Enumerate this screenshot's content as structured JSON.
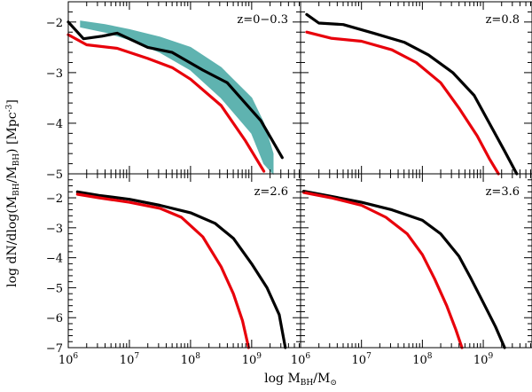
{
  "figure": {
    "xlabel": {
      "main": "log M",
      "sub": "BH",
      "tail": "/M",
      "sun": "⊙"
    },
    "ylabel": {
      "lead": "log dN/dlog(M",
      "sub1": "BH",
      "mid": "/M",
      "sub2": "BH",
      "tail": ") [Mpc",
      "sup": "-3",
      "end": "]"
    }
  },
  "colors": {
    "black": "#000000",
    "red": "#e8000b",
    "band": "#5fb3b0"
  },
  "chart_data": [
    {
      "type": "line",
      "title": "z=0−0.3",
      "xlim": [
        6,
        9.8
      ],
      "ylim": [
        -5,
        -1.6
      ],
      "xticks": [
        {
          "v": 6,
          "label": "10",
          "exp": "6"
        },
        {
          "v": 7,
          "label": "10",
          "exp": "7"
        },
        {
          "v": 8,
          "label": "10",
          "exp": "8"
        },
        {
          "v": 9,
          "label": "10",
          "exp": "9"
        }
      ],
      "yticks": [
        {
          "v": -5,
          "label": "−5"
        },
        {
          "v": -4,
          "label": "−4"
        },
        {
          "v": -3,
          "label": "−3"
        },
        {
          "v": -2,
          "label": "−2"
        }
      ],
      "band": {
        "name": "observed range",
        "x": [
          6.2,
          6.6,
          7.0,
          7.5,
          8.0,
          8.5,
          9.0,
          9.2,
          9.35
        ],
        "upper": [
          -1.98,
          -2.05,
          -2.15,
          -2.3,
          -2.5,
          -2.9,
          -3.5,
          -4.0,
          -4.6
        ],
        "lower": [
          -2.1,
          -2.2,
          -2.35,
          -2.6,
          -2.95,
          -3.5,
          -4.2,
          -4.8,
          -5.0
        ]
      },
      "series": [
        {
          "name": "model (black)",
          "color": "black",
          "x": [
            6.0,
            6.25,
            6.55,
            6.8,
            7.3,
            7.7,
            8.2,
            8.6,
            9.15,
            9.5
          ],
          "y": [
            -2.0,
            -2.33,
            -2.28,
            -2.22,
            -2.5,
            -2.6,
            -2.95,
            -3.2,
            -3.95,
            -4.68
          ]
        },
        {
          "name": "model (red)",
          "color": "red",
          "x": [
            6.0,
            6.3,
            6.8,
            7.3,
            7.7,
            8.0,
            8.5,
            8.9,
            9.2
          ],
          "y": [
            -2.25,
            -2.45,
            -2.52,
            -2.72,
            -2.9,
            -3.13,
            -3.65,
            -4.35,
            -4.95
          ]
        }
      ]
    },
    {
      "type": "line",
      "title": "z=0.8",
      "xlim": [
        6,
        9.8
      ],
      "ylim": [
        -5,
        -1.6
      ],
      "xticks": [
        {
          "v": 6,
          "label": "10",
          "exp": "6"
        },
        {
          "v": 7,
          "label": "10",
          "exp": "7"
        },
        {
          "v": 8,
          "label": "10",
          "exp": "8"
        },
        {
          "v": 9,
          "label": "10",
          "exp": "9"
        }
      ],
      "yticks": [
        {
          "v": -5,
          "label": ""
        },
        {
          "v": -4,
          "label": ""
        },
        {
          "v": -3,
          "label": ""
        },
        {
          "v": -2,
          "label": ""
        }
      ],
      "series": [
        {
          "name": "model (black)",
          "color": "black",
          "x": [
            6.1,
            6.3,
            6.7,
            7.2,
            7.7,
            8.1,
            8.5,
            8.85,
            9.1,
            9.35,
            9.55
          ],
          "y": [
            -1.85,
            -2.02,
            -2.05,
            -2.22,
            -2.4,
            -2.65,
            -3.0,
            -3.45,
            -4.0,
            -4.55,
            -5.0
          ]
        },
        {
          "name": "model (red)",
          "color": "red",
          "x": [
            6.1,
            6.5,
            7.0,
            7.5,
            7.9,
            8.3,
            8.6,
            8.9,
            9.1,
            9.25
          ],
          "y": [
            -2.2,
            -2.32,
            -2.38,
            -2.55,
            -2.8,
            -3.2,
            -3.7,
            -4.25,
            -4.7,
            -5.0
          ]
        }
      ]
    },
    {
      "type": "line",
      "title": "z=2.6",
      "xlim": [
        6,
        9.8
      ],
      "ylim": [
        -7,
        -1.2
      ],
      "xticks": [
        {
          "v": 6,
          "label": "10",
          "exp": "6"
        },
        {
          "v": 7,
          "label": "10",
          "exp": "7"
        },
        {
          "v": 8,
          "label": "10",
          "exp": "8"
        },
        {
          "v": 9,
          "label": "10",
          "exp": "9"
        }
      ],
      "yticks": [
        {
          "v": -7,
          "label": "−7"
        },
        {
          "v": -6,
          "label": "−6"
        },
        {
          "v": -5,
          "label": "−5"
        },
        {
          "v": -4,
          "label": "−4"
        },
        {
          "v": -3,
          "label": "−3"
        },
        {
          "v": -2,
          "label": "−2"
        }
      ],
      "series": [
        {
          "name": "model (black)",
          "color": "black",
          "x": [
            6.15,
            6.5,
            7.0,
            7.5,
            8.0,
            8.4,
            8.7,
            9.0,
            9.25,
            9.45,
            9.55
          ],
          "y": [
            -1.8,
            -1.92,
            -2.05,
            -2.25,
            -2.5,
            -2.85,
            -3.35,
            -4.2,
            -5.0,
            -5.9,
            -7.0
          ]
        },
        {
          "name": "model (red)",
          "color": "red",
          "x": [
            6.15,
            6.5,
            7.0,
            7.5,
            7.85,
            8.2,
            8.5,
            8.7,
            8.85,
            8.95
          ],
          "y": [
            -1.88,
            -2.0,
            -2.15,
            -2.35,
            -2.65,
            -3.3,
            -4.3,
            -5.2,
            -6.1,
            -7.0
          ]
        }
      ]
    },
    {
      "type": "line",
      "title": "z=3.6",
      "xlim": [
        6,
        9.8
      ],
      "ylim": [
        -7,
        -1.2
      ],
      "xticks": [
        {
          "v": 6,
          "label": "10",
          "exp": "6"
        },
        {
          "v": 7,
          "label": "10",
          "exp": "7"
        },
        {
          "v": 8,
          "label": "10",
          "exp": "8"
        },
        {
          "v": 9,
          "label": "10",
          "exp": "9"
        }
      ],
      "yticks": [
        {
          "v": -7,
          "label": ""
        },
        {
          "v": -6,
          "label": ""
        },
        {
          "v": -5,
          "label": ""
        },
        {
          "v": -4,
          "label": ""
        },
        {
          "v": -3,
          "label": ""
        },
        {
          "v": -2,
          "label": ""
        }
      ],
      "series": [
        {
          "name": "model (black)",
          "color": "black",
          "x": [
            6.05,
            6.5,
            7.0,
            7.5,
            8.0,
            8.3,
            8.6,
            8.8,
            9.0,
            9.2,
            9.35
          ],
          "y": [
            -1.78,
            -1.95,
            -2.15,
            -2.4,
            -2.75,
            -3.2,
            -3.95,
            -4.7,
            -5.5,
            -6.3,
            -7.0
          ]
        },
        {
          "name": "model (red)",
          "color": "red",
          "x": [
            6.05,
            6.5,
            7.0,
            7.4,
            7.75,
            8.0,
            8.2,
            8.4,
            8.55,
            8.65
          ],
          "y": [
            -1.82,
            -2.0,
            -2.25,
            -2.65,
            -3.2,
            -3.9,
            -4.7,
            -5.6,
            -6.4,
            -7.0
          ]
        }
      ]
    }
  ]
}
